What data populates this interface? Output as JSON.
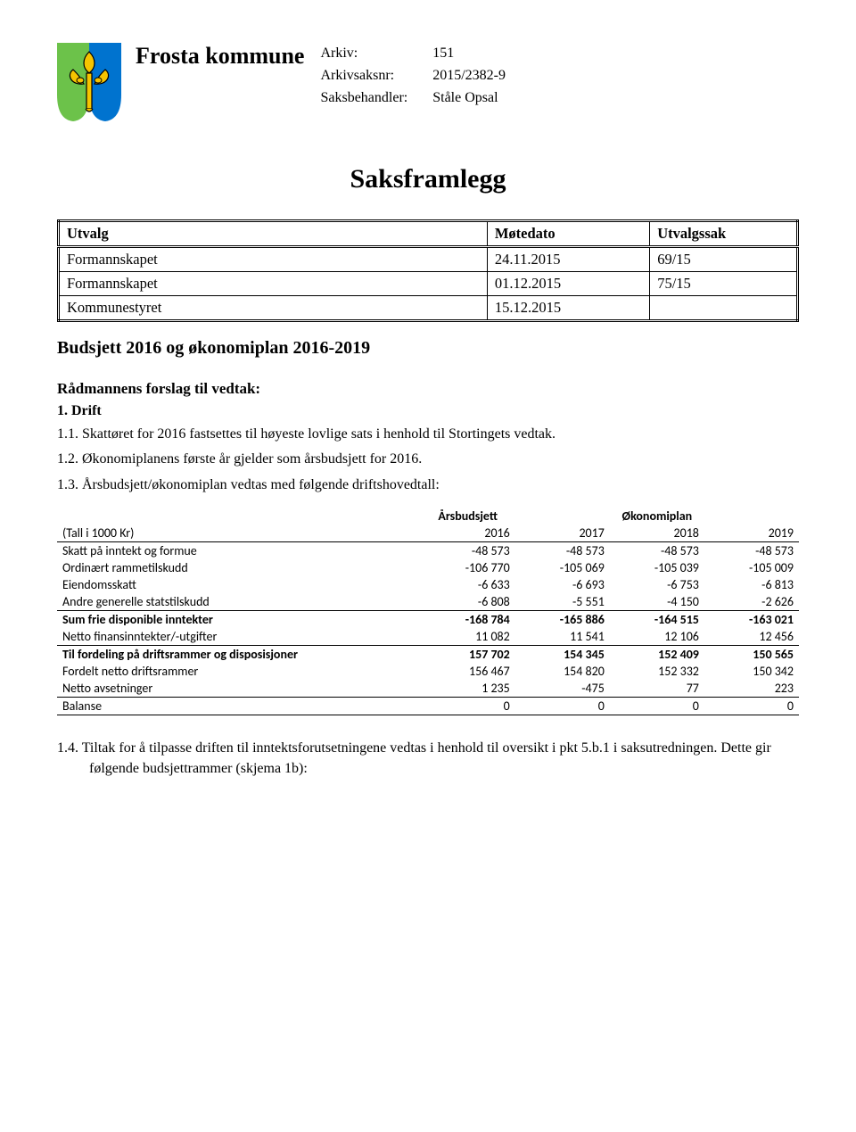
{
  "header": {
    "org_name": "Frosta kommune",
    "meta": [
      {
        "label": "Arkiv:",
        "value": "151"
      },
      {
        "label": "Arkivsaksnr:",
        "value": "2015/2382-9"
      },
      {
        "label": "Saksbehandler:",
        "value": "Ståle Opsal"
      }
    ],
    "crest_colors": {
      "shield_left": "#6cc24a",
      "shield_right": "#0073cf",
      "fleur": "#f6c400",
      "fleur_stroke": "#000000"
    }
  },
  "doc_title": "Saksframlegg",
  "utvalg_table": {
    "headers": [
      "Utvalg",
      "Møtedato",
      "Utvalgssak"
    ],
    "rows": [
      [
        "Formannskapet",
        "24.11.2015",
        "69/15"
      ],
      [
        "Formannskapet",
        "01.12.2015",
        "75/15"
      ],
      [
        "Kommunestyret",
        "15.12.2015",
        ""
      ]
    ]
  },
  "case_title": "Budsjett 2016 og økonomiplan 2016-2019",
  "proposal_heading": "Rådmannens forslag til vedtak:",
  "section1": {
    "label": "1. Drift",
    "items": {
      "i11": "1.1. Skattøret for 2016 fastsettes til høyeste lovlige sats i henhold til Stortingets vedtak.",
      "i12": "1.2. Økonomiplanens første år gjelder som årsbudsjett for 2016.",
      "i13": "1.3. Årsbudsjett/økonomiplan vedtas med følgende driftshovedtall:",
      "i14": "1.4. Tiltak for å tilpasse driften til inntektsforutsetningene vedtas i henhold til oversikt i pkt 5.b.1 i saksutredningen. Dette gir følgende budsjettrammer (skjema 1b):"
    }
  },
  "budget_table": {
    "header_top": {
      "label_left": "(Tall i 1000 Kr)",
      "col2": "Årsbudsjett",
      "col345": "Økonomiplan"
    },
    "years": [
      "2016",
      "2017",
      "2018",
      "2019"
    ],
    "rows": [
      {
        "label": "Skatt på inntekt og formue",
        "vals": [
          "-48 573",
          "-48 573",
          "-48 573",
          "-48 573"
        ],
        "bold": false,
        "line_t": false,
        "line_b": false
      },
      {
        "label": "Ordinært rammetilskudd",
        "vals": [
          "-106 770",
          "-105 069",
          "-105 039",
          "-105 009"
        ],
        "bold": false,
        "line_t": false,
        "line_b": false
      },
      {
        "label": "Eiendomsskatt",
        "vals": [
          "-6 633",
          "-6 693",
          "-6 753",
          "-6 813"
        ],
        "bold": false,
        "line_t": false,
        "line_b": false
      },
      {
        "label": "Andre generelle statstilskudd",
        "vals": [
          "-6 808",
          "-5 551",
          "-4 150",
          "-2 626"
        ],
        "bold": false,
        "line_t": false,
        "line_b": true
      },
      {
        "label": "Sum frie disponible inntekter",
        "vals": [
          "-168 784",
          "-165 886",
          "-164 515",
          "-163 021"
        ],
        "bold": true,
        "line_t": false,
        "line_b": false
      },
      {
        "label": "Netto finansinntekter/-utgifter",
        "vals": [
          "11 082",
          "11 541",
          "12 106",
          "12 456"
        ],
        "bold": false,
        "line_t": false,
        "line_b": true
      },
      {
        "label": "Til fordeling på driftsrammer og disposisjoner",
        "vals": [
          "157 702",
          "154 345",
          "152 409",
          "150 565"
        ],
        "bold": true,
        "line_t": false,
        "line_b": false
      },
      {
        "label": "Fordelt netto driftsrammer",
        "vals": [
          "156 467",
          "154 820",
          "152 332",
          "150 342"
        ],
        "bold": false,
        "line_t": false,
        "line_b": false
      },
      {
        "label": "Netto avsetninger",
        "vals": [
          "1 235",
          "-475",
          "77",
          "223"
        ],
        "bold": false,
        "line_t": false,
        "line_b": true
      },
      {
        "label": "Balanse",
        "vals": [
          "0",
          "0",
          "0",
          "0"
        ],
        "bold": false,
        "line_t": false,
        "line_b": true
      }
    ],
    "font_family": "Calibri",
    "font_size_pt": 10,
    "border_color": "#000000"
  }
}
